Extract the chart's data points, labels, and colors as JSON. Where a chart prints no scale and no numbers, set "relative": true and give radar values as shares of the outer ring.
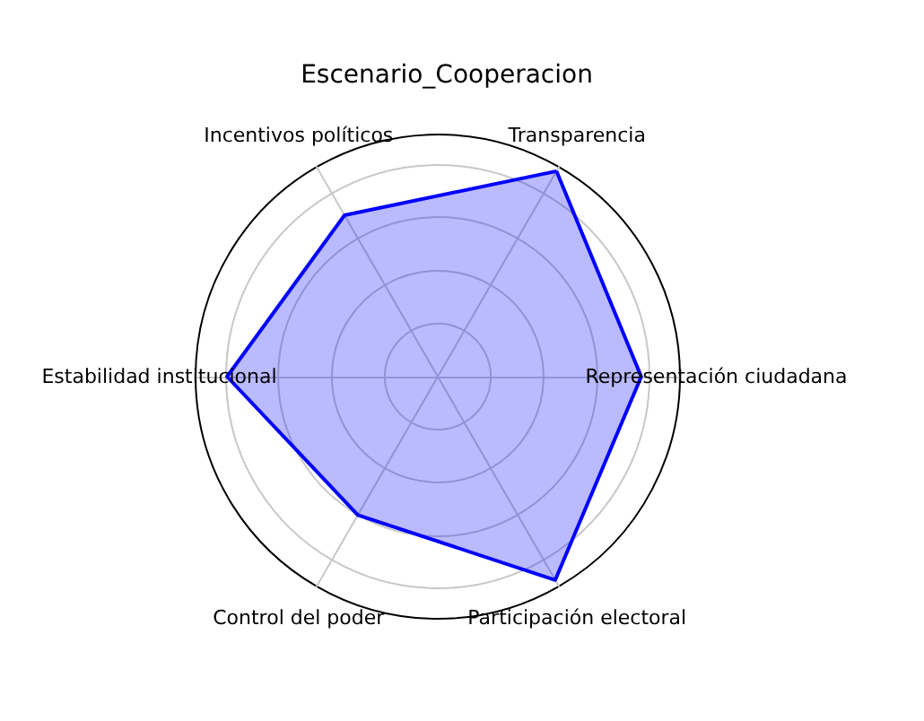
{
  "chart_data": {
    "type": "radar",
    "title": "Escenario_Cooperacion",
    "relative": true,
    "grid": true,
    "categories": [
      "Transparencia",
      "Representación ciudadana",
      "Participación electoral",
      "Control del poder",
      "Estabilidad institucional",
      "Incentivos políticos"
    ],
    "series": [
      {
        "color": "#0000ff",
        "values": [
          0.98,
          0.84,
          0.97,
          0.66,
          0.87,
          0.77
        ]
      }
    ]
  }
}
